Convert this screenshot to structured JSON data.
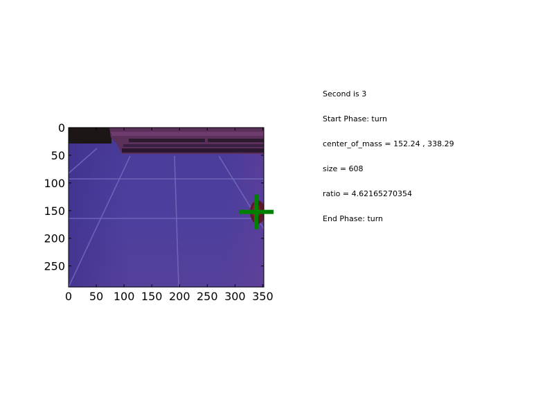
{
  "info_lines": [
    "Second is 3",
    "Start Phase: turn",
    "center_of_mass = 152.24 , 338.29",
    "size = 608",
    "ratio = 4.62165270354",
    "End Phase: turn"
  ],
  "chart_data": {
    "type": "image",
    "title": "",
    "xlabel": "",
    "ylabel": "",
    "xlim": [
      0,
      352
    ],
    "ylim": [
      288,
      0
    ],
    "x_ticks": [
      0,
      50,
      100,
      150,
      200,
      250,
      300,
      350
    ],
    "y_ticks": [
      0,
      50,
      100,
      150,
      200,
      250
    ],
    "grid": false,
    "marker": {
      "shape": "plus",
      "x": 338.29,
      "y": 152.24,
      "color": "#008000"
    }
  }
}
